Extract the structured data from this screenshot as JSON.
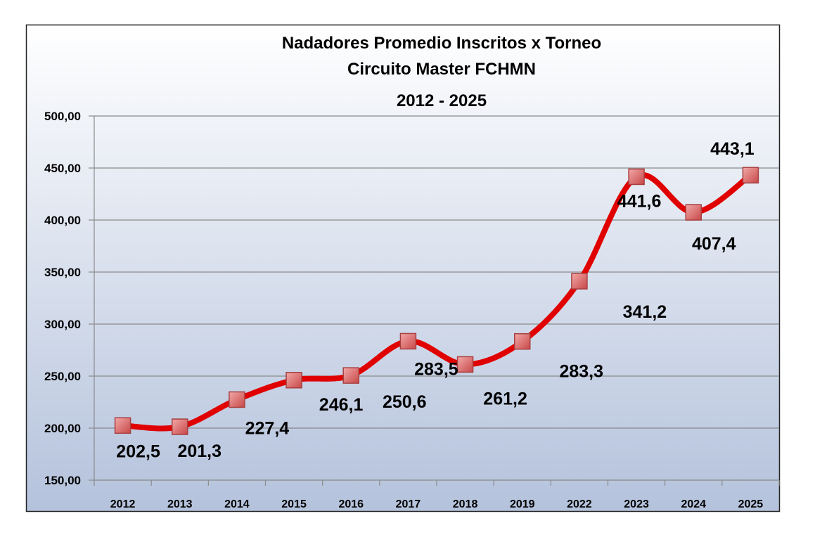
{
  "chart_data": {
    "type": "line",
    "title": [
      "Nadadores Promedio Inscritos x Torneo",
      "Circuito Master FCHMN",
      "2012 - 2025"
    ],
    "xlabel": "",
    "ylabel": "",
    "categories": [
      "2012",
      "2013",
      "2014",
      "2015",
      "2016",
      "2017",
      "2018",
      "2019",
      "2022",
      "2023",
      "2024",
      "2025"
    ],
    "series": [
      {
        "name": "Nadadores Promedio",
        "values": [
          202.5,
          201.3,
          227.4,
          246.1,
          250.6,
          283.5,
          261.2,
          283.3,
          341.2,
          441.6,
          407.4,
          443.1
        ],
        "color": "#e00000"
      }
    ],
    "data_labels": [
      "202,5",
      "201,3",
      "227,4",
      "246,1",
      "250,6",
      "283,5",
      "261,2",
      "283,3",
      "341,2",
      "441,6",
      "407,4",
      "443,1"
    ],
    "ylim": [
      150,
      500
    ],
    "yticks": [
      150,
      200,
      250,
      300,
      350,
      400,
      450,
      500
    ],
    "ytick_labels": [
      "150,00",
      "200,00",
      "250,00",
      "300,00",
      "350,00",
      "400,00",
      "450,00",
      "500,00"
    ],
    "grid": true,
    "legend": "none",
    "marker_color": "#d96a6a"
  }
}
